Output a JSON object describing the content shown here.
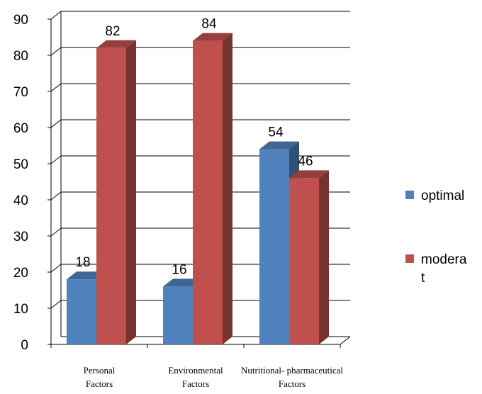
{
  "chart_data": {
    "type": "bar",
    "categories": [
      [
        "Personal",
        "Factors"
      ],
      [
        "Environmental",
        "Factors"
      ],
      [
        "Nutritional- pharmaceutical",
        "Factors"
      ]
    ],
    "series": [
      {
        "name": "optimal",
        "values": [
          18,
          16,
          54
        ],
        "color": "#4F81BD"
      },
      {
        "name": "moderat",
        "values": [
          82,
          84,
          46
        ],
        "color": "#C0504D"
      }
    ],
    "ylim": [
      0,
      90
    ],
    "yticks": [
      0,
      10,
      20,
      30,
      40,
      50,
      60,
      70,
      80,
      90
    ],
    "grid": true,
    "legend_position": "right",
    "legend_labels": [
      [
        "optimal"
      ],
      [
        "modera",
        "t"
      ]
    ]
  }
}
